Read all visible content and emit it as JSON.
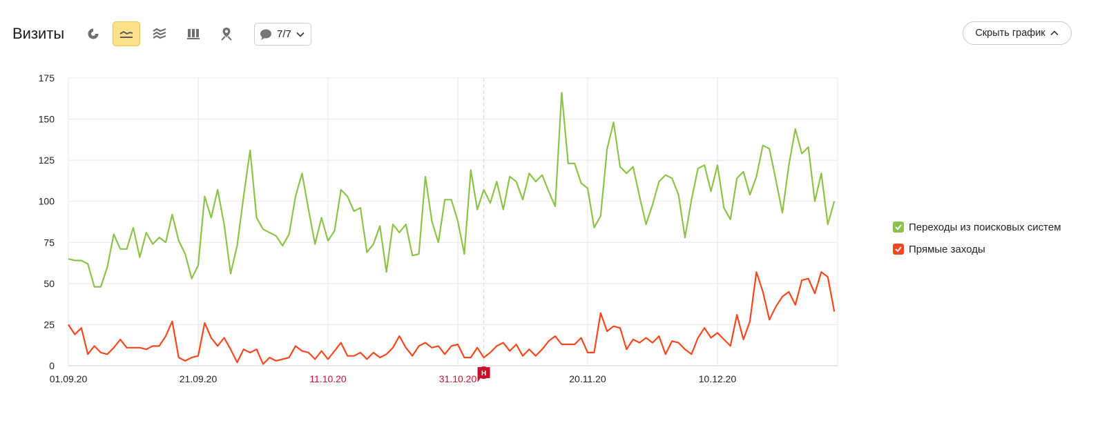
{
  "header": {
    "title": "Визиты",
    "comments_count": "7/7",
    "hide_chart_label": "Скрыть график"
  },
  "toolbar": {
    "buttons": [
      {
        "icon": "pie-chart-icon",
        "active": false
      },
      {
        "icon": "line-chart-icon",
        "active": true
      },
      {
        "icon": "area-chart-icon",
        "active": false
      },
      {
        "icon": "bar-chart-icon",
        "active": false
      },
      {
        "icon": "map-icon",
        "active": false
      }
    ]
  },
  "annotation_marker": "Н",
  "colors": {
    "green": "#8bc34a",
    "red": "#f4471e",
    "grid": "#e8e8e8",
    "holiday": "#c8102e",
    "accent": "#ffe08a"
  },
  "legend": [
    {
      "label": "Переходы из поисковых систем",
      "color": "#8bc34a"
    },
    {
      "label": "Прямые заходы",
      "color": "#f4471e"
    }
  ],
  "chart_data": {
    "type": "line",
    "xlabel": "",
    "ylabel": "",
    "ylim": [
      0,
      175
    ],
    "y_ticks": [
      0,
      25,
      50,
      75,
      100,
      125,
      150,
      175
    ],
    "x_start": "01.09.20",
    "x_ticks": [
      {
        "label": "01.09.20",
        "day": 0,
        "holiday": false
      },
      {
        "label": "21.09.20",
        "day": 20,
        "holiday": false
      },
      {
        "label": "11.10.20",
        "day": 40,
        "holiday": true
      },
      {
        "label": "31.10.20",
        "day": 60,
        "holiday": true
      },
      {
        "label": "20.11.20",
        "day": 80,
        "holiday": false
      },
      {
        "label": "10.12.20",
        "day": 100,
        "holiday": false
      }
    ],
    "marker_day": 64,
    "grid": true,
    "legend_position": "right",
    "series": [
      {
        "name": "Переходы из поисковых систем",
        "color": "#8bc34a",
        "values": [
          65,
          64,
          64,
          62,
          48,
          48,
          60,
          80,
          71,
          71,
          84,
          66,
          81,
          74,
          78,
          75,
          92,
          76,
          68,
          53,
          61,
          103,
          90,
          107,
          86,
          56,
          73,
          103,
          131,
          90,
          83,
          81,
          79,
          73,
          80,
          103,
          117,
          95,
          74,
          90,
          76,
          82,
          107,
          103,
          94,
          96,
          69,
          74,
          85,
          57,
          86,
          81,
          86,
          67,
          68,
          115,
          88,
          75,
          101,
          101,
          88,
          68,
          119,
          95,
          107,
          99,
          112,
          95,
          115,
          112,
          101,
          117,
          112,
          116,
          106,
          97,
          166,
          123,
          123,
          111,
          108,
          84,
          91,
          132,
          148,
          121,
          117,
          121,
          103,
          86,
          98,
          112,
          116,
          114,
          104,
          78,
          101,
          120,
          122,
          106,
          122,
          96,
          89,
          114,
          118,
          104,
          115,
          134,
          132,
          113,
          93,
          122,
          144,
          129,
          133,
          100,
          117,
          86,
          100
        ]
      },
      {
        "name": "Прямые заходы",
        "color": "#f4471e",
        "values": [
          25,
          19,
          23,
          7,
          12,
          8,
          7,
          11,
          16,
          11,
          11,
          11,
          10,
          12,
          12,
          18,
          27,
          5,
          3,
          5,
          6,
          26,
          17,
          12,
          17,
          10,
          2,
          10,
          8,
          10,
          1,
          5,
          3,
          4,
          5,
          12,
          9,
          8,
          4,
          9,
          4,
          9,
          14,
          6,
          6,
          8,
          4,
          8,
          5,
          7,
          11,
          18,
          11,
          6,
          12,
          14,
          11,
          12,
          7,
          12,
          13,
          5,
          5,
          11,
          5,
          8,
          12,
          14,
          9,
          13,
          6,
          10,
          6,
          10,
          15,
          18,
          13,
          13,
          13,
          17,
          8,
          8,
          32,
          21,
          24,
          23,
          10,
          16,
          14,
          17,
          14,
          18,
          7,
          15,
          14,
          10,
          7,
          17,
          23,
          17,
          20,
          16,
          12,
          31,
          16,
          27,
          57,
          45,
          28,
          36,
          42,
          45,
          37,
          52,
          53,
          44,
          57,
          54,
          33
        ]
      }
    ]
  }
}
